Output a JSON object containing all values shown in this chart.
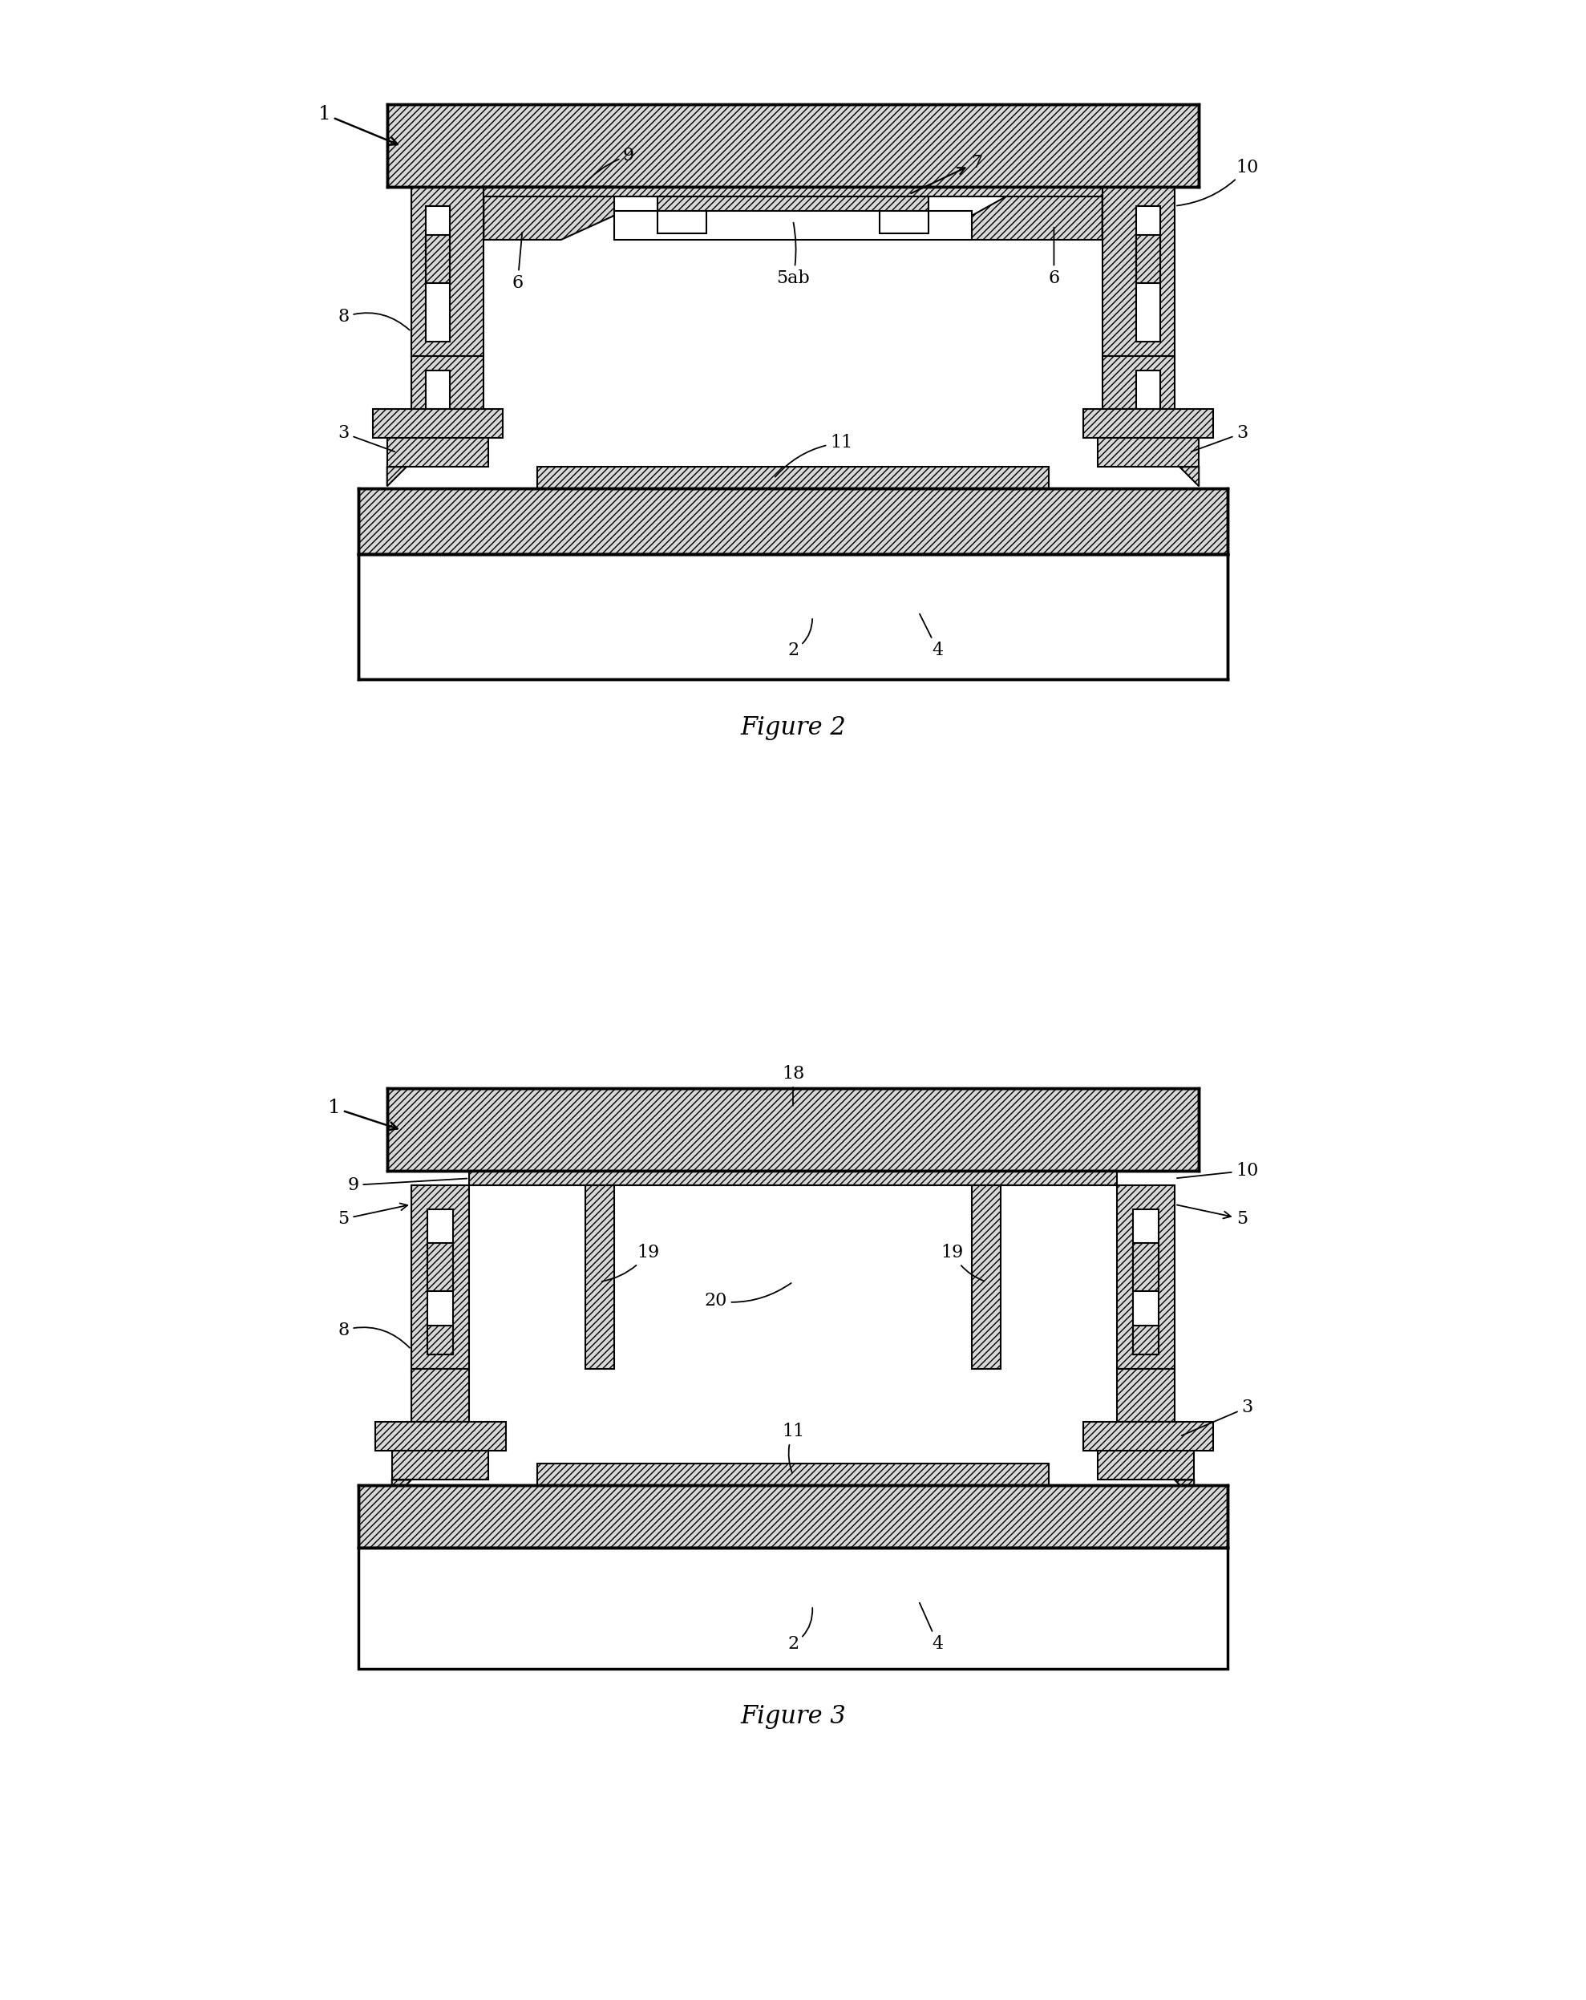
{
  "bg_color": "#ffffff",
  "lw": 1.5,
  "lw_thick": 2.5,
  "hatch_light": "////",
  "hatch_dense": "////////",
  "fig2_title": "Figure 2",
  "fig3_title": "Figure 3"
}
